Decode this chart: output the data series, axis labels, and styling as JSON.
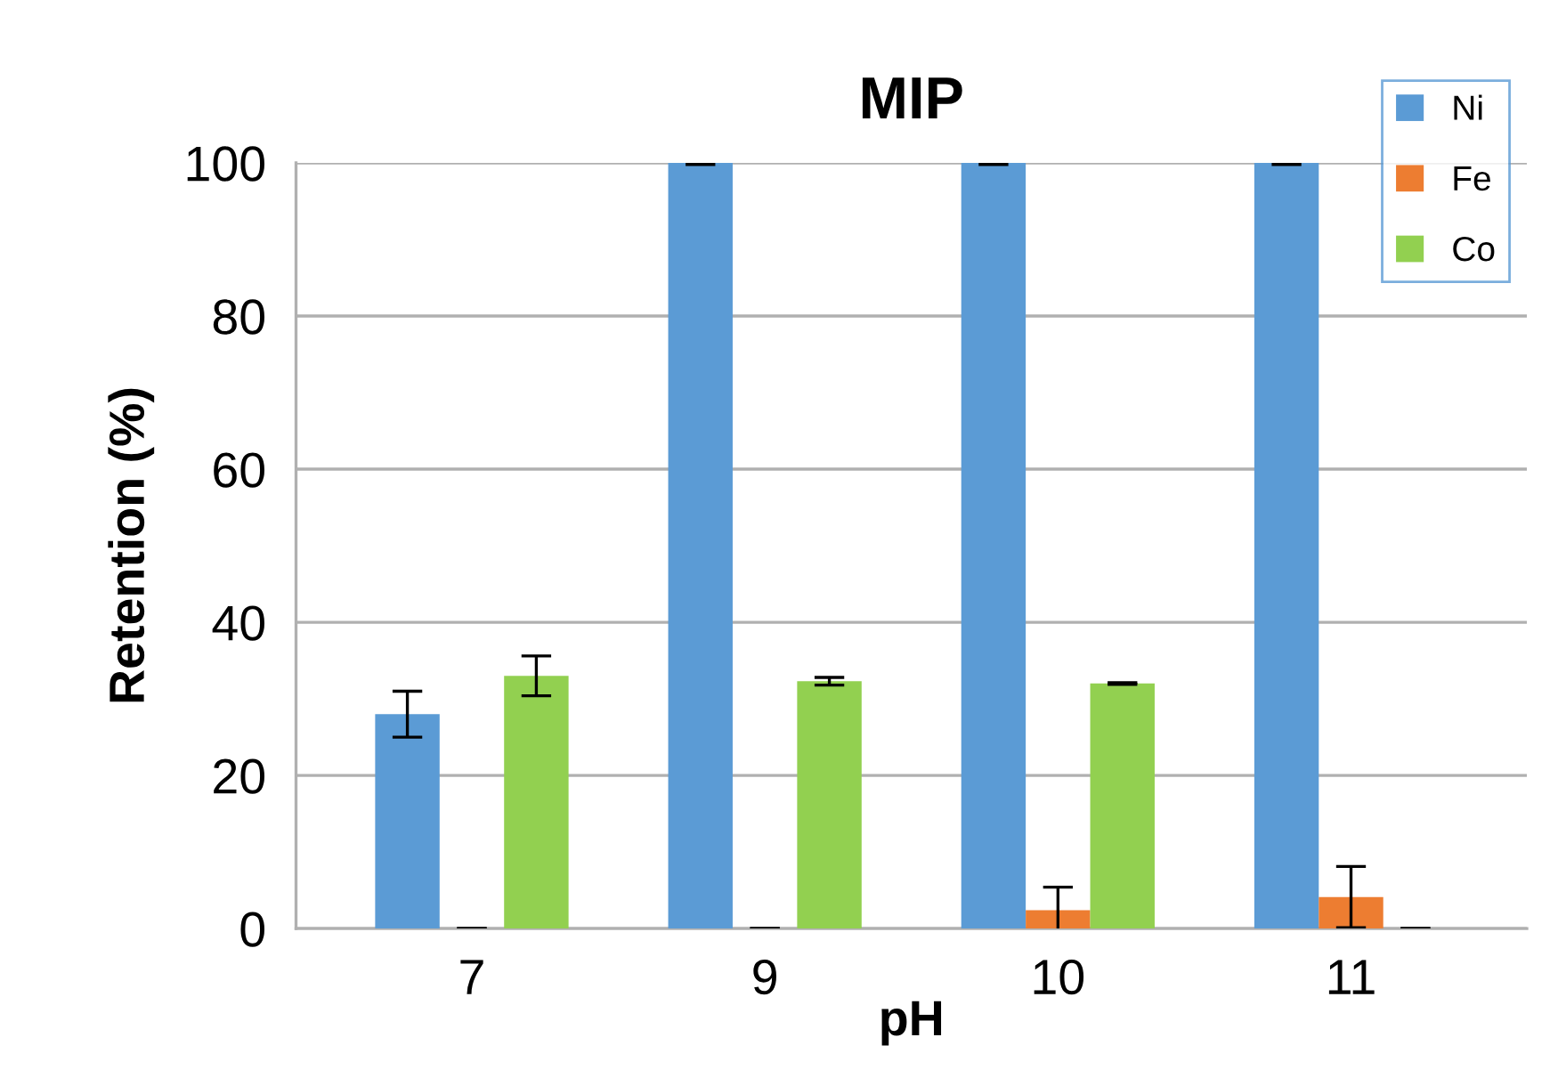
{
  "chart_data": {
    "type": "bar",
    "title": "MIP",
    "xlabel": "pH",
    "ylabel": "Retention (%)",
    "categories": [
      "7",
      "9",
      "10",
      "11"
    ],
    "series": [
      {
        "name": "Ni",
        "color": "#5b9bd5",
        "values": [
          28,
          100,
          100,
          100
        ],
        "errors": [
          3,
          0.2,
          0.2,
          0.2
        ]
      },
      {
        "name": "Fe",
        "color": "#ed7d31",
        "values": [
          0,
          0,
          2.4,
          4.1
        ],
        "errors": [
          0,
          0,
          3,
          4
        ]
      },
      {
        "name": "Co",
        "color": "#92d050",
        "values": [
          33,
          32.3,
          32,
          0
        ],
        "errors": [
          2.6,
          0.5,
          0.1,
          0
        ]
      }
    ],
    "ylim": [
      0,
      100
    ],
    "yticks": [
      0,
      20,
      40,
      60,
      80,
      100
    ],
    "grid": "y",
    "legend": "top right"
  }
}
